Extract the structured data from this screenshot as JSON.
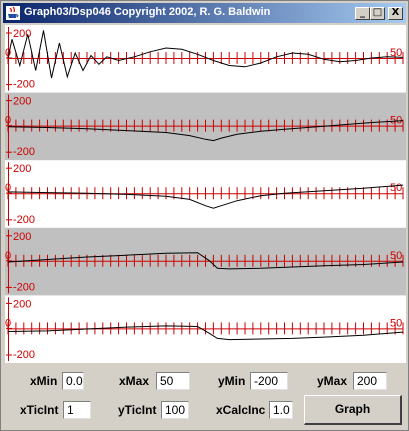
{
  "window": {
    "title": "Graph03/Dsp046 Copyright 2002, R. G. Baldwin",
    "buttons": {
      "minimize": "_",
      "maximize": "□",
      "close": "X"
    }
  },
  "colors": {
    "axis": "#cc0000",
    "curve": "#000000",
    "band_light": "#ffffff",
    "band_gray": "#c0c0c0"
  },
  "chart_data": [
    {
      "type": "line",
      "ymin_label": "-200",
      "ymax_label": "200",
      "x_origin_label": "0",
      "x_max_label": "50",
      "band": "light",
      "xlim": [
        0,
        50
      ],
      "ylim": [
        -200,
        200
      ],
      "x": [
        0,
        0.5,
        1.5,
        2.5,
        3.5,
        4.5,
        5.5,
        6.5,
        7.5,
        8.5,
        9.5,
        10.5,
        11.5,
        12.5,
        14,
        16,
        18,
        20,
        22,
        24,
        26,
        28,
        30,
        32,
        34,
        36,
        38,
        40,
        42,
        44,
        46,
        48,
        50
      ],
      "values": [
        0,
        150,
        -60,
        190,
        -100,
        220,
        -160,
        120,
        -150,
        40,
        -100,
        20,
        -50,
        10,
        -20,
        10,
        50,
        80,
        70,
        30,
        -20,
        -60,
        -70,
        -40,
        10,
        40,
        30,
        -10,
        -30,
        -20,
        0,
        10,
        5
      ]
    },
    {
      "type": "line",
      "ymin_label": "-200",
      "ymax_label": "200",
      "x_origin_label": "0",
      "x_max_label": "50",
      "band": "gray",
      "xlim": [
        0,
        50
      ],
      "ylim": [
        -200,
        200
      ],
      "x": [
        0,
        5,
        10,
        15,
        20,
        23,
        25,
        26,
        27,
        29,
        32,
        35,
        40,
        45,
        50
      ],
      "values": [
        -10,
        -15,
        -25,
        -40,
        -55,
        -80,
        -110,
        -120,
        -100,
        -70,
        -45,
        -30,
        -5,
        20,
        40
      ]
    },
    {
      "type": "line",
      "ymin_label": "-200",
      "ymax_label": "200",
      "x_origin_label": "0",
      "x_max_label": "50",
      "band": "light",
      "xlim": [
        0,
        50
      ],
      "ylim": [
        -200,
        200
      ],
      "x": [
        0,
        5,
        10,
        15,
        20,
        23,
        25,
        26,
        27,
        29,
        32,
        35,
        40,
        45,
        50
      ],
      "values": [
        10,
        5,
        0,
        -10,
        -25,
        -50,
        -100,
        -120,
        -100,
        -60,
        -20,
        0,
        20,
        40,
        65
      ]
    },
    {
      "type": "line",
      "ymin_label": "-200",
      "ymax_label": "200",
      "x_origin_label": "0",
      "x_max_label": "50",
      "band": "gray",
      "xlim": [
        0,
        50
      ],
      "ylim": [
        -200,
        200
      ],
      "x": [
        0,
        5,
        10,
        15,
        20,
        24,
        25.5,
        26.5,
        28,
        32,
        36,
        40,
        45,
        50
      ],
      "values": [
        -10,
        10,
        30,
        45,
        60,
        65,
        0,
        -60,
        -65,
        -60,
        -50,
        -40,
        -30,
        -10
      ]
    },
    {
      "type": "line",
      "ymin_label": "-200",
      "ymax_label": "200",
      "x_origin_label": "0",
      "x_max_label": "50",
      "band": "light",
      "xlim": [
        0,
        50
      ],
      "ylim": [
        -200,
        200
      ],
      "x": [
        0,
        5,
        10,
        15,
        20,
        24,
        25.5,
        26.5,
        28,
        32,
        36,
        40,
        45,
        50
      ],
      "values": [
        -25,
        -20,
        -5,
        10,
        20,
        15,
        -40,
        -80,
        -90,
        -85,
        -80,
        -70,
        -55,
        -30
      ]
    }
  ],
  "controls": {
    "xmin": {
      "label": "xMin",
      "value": "0.0"
    },
    "xmax": {
      "label": "xMax",
      "value": "50"
    },
    "ymin": {
      "label": "yMin",
      "value": "-200"
    },
    "ymax": {
      "label": "yMax",
      "value": "200"
    },
    "xticint": {
      "label": "xTicInt",
      "value": "1"
    },
    "yticint": {
      "label": "yTicInt",
      "value": "100"
    },
    "xcalcinc": {
      "label": "xCalcInc",
      "value": "1.0"
    },
    "graph_button": "Graph"
  }
}
